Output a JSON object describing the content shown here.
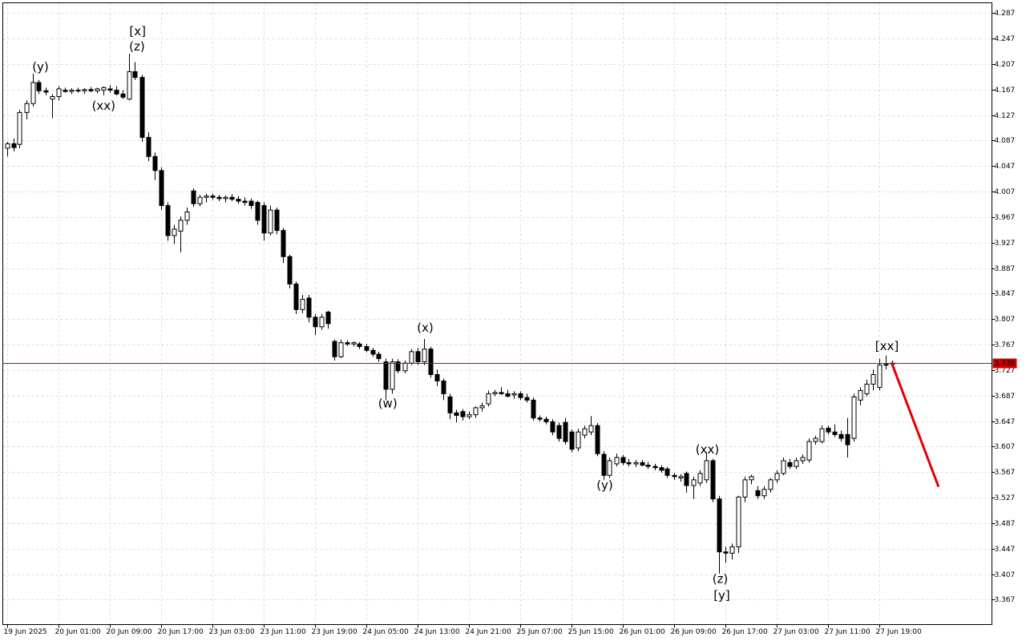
{
  "chart_data": {
    "type": "candlestick",
    "xlim": [
      -0.625,
      153.625
    ],
    "ylim": [
      3.328,
      4.303
    ],
    "grid": true,
    "up_color": "#ffffff",
    "down_color": "#000000",
    "yticks": [
      4.287,
      4.247,
      4.207,
      4.167,
      4.127,
      4.087,
      4.047,
      4.007,
      3.967,
      3.927,
      3.887,
      3.847,
      3.807,
      3.767,
      3.727,
      3.687,
      3.647,
      3.607,
      3.567,
      3.527,
      3.487,
      3.447,
      3.407,
      3.367
    ],
    "xticks": [
      {
        "value": 0,
        "label": "19 Jun 2025"
      },
      {
        "value": 8,
        "label": "20 Jun 01:00"
      },
      {
        "value": 16,
        "label": "20 Jun 09:00"
      },
      {
        "value": 24,
        "label": "20 Jun 17:00"
      },
      {
        "value": 32,
        "label": "23 Jun 03:00"
      },
      {
        "value": 40,
        "label": "23 Jun 11:00"
      },
      {
        "value": 48,
        "label": "23 Jun 19:00"
      },
      {
        "value": 56,
        "label": "24 Jun 05:00"
      },
      {
        "value": 64,
        "label": "24 Jun 13:00"
      },
      {
        "value": 72,
        "label": "24 Jun 21:00"
      },
      {
        "value": 80,
        "label": "25 Jun 07:00"
      },
      {
        "value": 88,
        "label": "25 Jun 15:00"
      },
      {
        "value": 96,
        "label": "26 Jun 01:00"
      },
      {
        "value": 104,
        "label": "26 Jun 09:00"
      },
      {
        "value": 112,
        "label": "26 Jun 17:00"
      },
      {
        "value": 120,
        "label": "27 Jun 03:00"
      },
      {
        "value": 128,
        "label": "27 Jun 11:00"
      },
      {
        "value": 136,
        "label": "27 Jun 19:00"
      }
    ],
    "current_price": 3.738,
    "current_price_color": "#cc0000",
    "forecast": {
      "x": [
        138,
        145.3
      ],
      "y": [
        3.738,
        3.544
      ],
      "color": "#e00000"
    },
    "annotations": [
      {
        "text": "(y)",
        "x": 5.25,
        "y": 4.202,
        "color": "#1a1acc"
      },
      {
        "text": "(xx)",
        "x": 15.1,
        "y": 4.141,
        "color": "#1a1acc"
      },
      {
        "text": "[x]",
        "x": 20.4,
        "y": 4.258,
        "color": "#3fbf3f"
      },
      {
        "text": "(z)",
        "x": 20.3,
        "y": 4.234,
        "color": "#1a1acc"
      },
      {
        "text": "(x)",
        "x": 65.25,
        "y": 3.793,
        "color": "#1a1acc"
      },
      {
        "text": "(w)",
        "x": 59.4,
        "y": 3.674,
        "color": "#1a1acc"
      },
      {
        "text": "(y)",
        "x": 93.25,
        "y": 3.546,
        "color": "#1a1acc"
      },
      {
        "text": "(xx)",
        "x": 109.25,
        "y": 3.602,
        "color": "#1a1acc"
      },
      {
        "text": "(z)",
        "x": 111.25,
        "y": 3.399,
        "color": "#1a1acc"
      },
      {
        "text": "[y]",
        "x": 111.5,
        "y": 3.373,
        "color": "#3fbf3f"
      },
      {
        "text": "[xx]",
        "x": 137.25,
        "y": 3.764,
        "color": "#3fbf3f"
      }
    ],
    "ohlc": [
      [
        4.075,
        4.085,
        4.062,
        4.082
      ],
      [
        4.082,
        4.09,
        4.07,
        4.076
      ],
      [
        4.081,
        4.135,
        4.075,
        4.131
      ],
      [
        4.131,
        4.15,
        4.12,
        4.145
      ],
      [
        4.145,
        4.192,
        4.14,
        4.178
      ],
      [
        4.178,
        4.182,
        4.16,
        4.165
      ],
      [
        4.165,
        4.17,
        4.158,
        4.163
      ],
      [
        4.152,
        4.16,
        4.122,
        4.156
      ],
      [
        4.156,
        4.172,
        4.15,
        4.168
      ],
      [
        4.166,
        4.17,
        4.162,
        4.164
      ],
      [
        4.164,
        4.169,
        4.16,
        4.166
      ],
      [
        4.166,
        4.17,
        4.162,
        4.165
      ],
      [
        4.165,
        4.169,
        4.16,
        4.167
      ],
      [
        4.167,
        4.171,
        4.163,
        4.165
      ],
      [
        4.165,
        4.17,
        4.161,
        4.168
      ],
      [
        4.166,
        4.172,
        4.158,
        4.17
      ],
      [
        4.168,
        4.174,
        4.162,
        4.166
      ],
      [
        4.166,
        4.172,
        4.158,
        4.16
      ],
      [
        4.16,
        4.166,
        4.152,
        4.155
      ],
      [
        4.152,
        4.223,
        4.15,
        4.195
      ],
      [
        4.195,
        4.21,
        4.182,
        4.186
      ],
      [
        4.186,
        4.19,
        4.085,
        4.092
      ],
      [
        4.092,
        4.1,
        4.055,
        4.062
      ],
      [
        4.062,
        4.068,
        4.025,
        4.04
      ],
      [
        4.04,
        4.045,
        3.978,
        3.985
      ],
      [
        3.985,
        3.99,
        3.93,
        3.938
      ],
      [
        3.938,
        3.955,
        3.925,
        3.948
      ],
      [
        3.945,
        3.968,
        3.912,
        3.962
      ],
      [
        3.962,
        3.982,
        3.955,
        3.975
      ],
      [
        4.008,
        4.012,
        3.983,
        3.988
      ],
      [
        3.988,
        4.002,
        3.984,
        3.998
      ],
      [
        3.998,
        4.004,
        3.99,
        4.0
      ],
      [
        4.0,
        4.004,
        3.994,
        3.998
      ],
      [
        3.998,
        4.002,
        3.992,
        3.996
      ],
      [
        3.996,
        4.001,
        3.99,
        3.998
      ],
      [
        3.998,
        4.003,
        3.992,
        3.995
      ],
      [
        3.995,
        4.0,
        3.988,
        3.992
      ],
      [
        3.992,
        3.998,
        3.985,
        3.99
      ],
      [
        3.992,
        3.996,
        3.98,
        3.985
      ],
      [
        3.99,
        3.993,
        3.955,
        3.962
      ],
      [
        3.985,
        3.99,
        3.93,
        3.942
      ],
      [
        3.942,
        3.985,
        3.938,
        3.978
      ],
      [
        3.978,
        3.982,
        3.94,
        3.946
      ],
      [
        3.946,
        3.95,
        3.895,
        3.905
      ],
      [
        3.905,
        3.908,
        3.855,
        3.862
      ],
      [
        3.862,
        3.866,
        3.815,
        3.822
      ],
      [
        3.822,
        3.845,
        3.816,
        3.838
      ],
      [
        3.84,
        3.845,
        3.802,
        3.81
      ],
      [
        3.81,
        3.815,
        3.782,
        3.795
      ],
      [
        3.795,
        3.815,
        3.79,
        3.81
      ],
      [
        3.818,
        3.82,
        3.792,
        3.8
      ],
      [
        3.772,
        3.775,
        3.742,
        3.748
      ],
      [
        3.748,
        3.775,
        3.746,
        3.77
      ],
      [
        3.77,
        3.774,
        3.765,
        3.768
      ],
      [
        3.768,
        3.772,
        3.764,
        3.77
      ],
      [
        3.768,
        3.771,
        3.76,
        3.764
      ],
      [
        3.764,
        3.768,
        3.755,
        3.758
      ],
      [
        3.758,
        3.762,
        3.748,
        3.752
      ],
      [
        3.752,
        3.756,
        3.74,
        3.745
      ],
      [
        3.74,
        3.745,
        3.68,
        3.697
      ],
      [
        3.697,
        3.745,
        3.69,
        3.74
      ],
      [
        3.74,
        3.744,
        3.722,
        3.726
      ],
      [
        3.726,
        3.742,
        3.722,
        3.738
      ],
      [
        3.738,
        3.76,
        3.735,
        3.756
      ],
      [
        3.756,
        3.762,
        3.735,
        3.74
      ],
      [
        3.74,
        3.776,
        3.735,
        3.76
      ],
      [
        3.76,
        3.764,
        3.715,
        3.72
      ],
      [
        3.72,
        3.728,
        3.702,
        3.71
      ],
      [
        3.71,
        3.714,
        3.68,
        3.69
      ],
      [
        3.685,
        3.69,
        3.65,
        3.66
      ],
      [
        3.66,
        3.665,
        3.645,
        3.656
      ],
      [
        3.662,
        3.666,
        3.648,
        3.654
      ],
      [
        3.654,
        3.662,
        3.65,
        3.657
      ],
      [
        3.657,
        3.67,
        3.652,
        3.668
      ],
      [
        3.668,
        3.676,
        3.662,
        3.671
      ],
      [
        3.674,
        3.695,
        3.67,
        3.69
      ],
      [
        3.69,
        3.696,
        3.686,
        3.692
      ],
      [
        3.692,
        3.7,
        3.688,
        3.69
      ],
      [
        3.69,
        3.696,
        3.684,
        3.686
      ],
      [
        3.688,
        3.694,
        3.682,
        3.69
      ],
      [
        3.69,
        3.694,
        3.68,
        3.684
      ],
      [
        3.684,
        3.69,
        3.676,
        3.68
      ],
      [
        3.68,
        3.684,
        3.648,
        3.652
      ],
      [
        3.652,
        3.656,
        3.646,
        3.65
      ],
      [
        3.65,
        3.654,
        3.642,
        3.646
      ],
      [
        3.646,
        3.65,
        3.625,
        3.63
      ],
      [
        3.64,
        3.645,
        3.615,
        3.62
      ],
      [
        3.645,
        3.652,
        3.61,
        3.615
      ],
      [
        3.63,
        3.634,
        3.598,
        3.603
      ],
      [
        3.605,
        3.635,
        3.6,
        3.63
      ],
      [
        3.625,
        3.64,
        3.62,
        3.635
      ],
      [
        3.63,
        3.655,
        3.625,
        3.64
      ],
      [
        3.64,
        3.644,
        3.592,
        3.596
      ],
      [
        3.595,
        3.6,
        3.555,
        3.562
      ],
      [
        3.562,
        3.59,
        3.558,
        3.585
      ],
      [
        3.58,
        3.596,
        3.576,
        3.59
      ],
      [
        3.59,
        3.594,
        3.578,
        3.582
      ],
      [
        3.582,
        3.588,
        3.576,
        3.58
      ],
      [
        3.58,
        3.586,
        3.575,
        3.582
      ],
      [
        3.582,
        3.586,
        3.576,
        3.578
      ],
      [
        3.578,
        3.583,
        3.572,
        3.576
      ],
      [
        3.576,
        3.58,
        3.57,
        3.574
      ],
      [
        3.574,
        3.578,
        3.566,
        3.57
      ],
      [
        3.572,
        3.575,
        3.558,
        3.562
      ],
      [
        3.562,
        3.566,
        3.555,
        3.56
      ],
      [
        3.558,
        3.564,
        3.552,
        3.56
      ],
      [
        3.565,
        3.568,
        3.535,
        3.546
      ],
      [
        3.546,
        3.56,
        3.525,
        3.555
      ],
      [
        3.55,
        3.57,
        3.545,
        3.565
      ],
      [
        3.555,
        3.598,
        3.55,
        3.585
      ],
      [
        3.585,
        3.588,
        3.52,
        3.525
      ],
      [
        3.525,
        3.53,
        3.408,
        3.442
      ],
      [
        3.442,
        3.45,
        3.425,
        3.44
      ],
      [
        3.44,
        3.455,
        3.43,
        3.45
      ],
      [
        3.45,
        3.53,
        3.44,
        3.528
      ],
      [
        3.528,
        3.56,
        3.52,
        3.555
      ],
      [
        3.555,
        3.563,
        3.548,
        3.56
      ],
      [
        3.538,
        3.545,
        3.525,
        3.53
      ],
      [
        3.53,
        3.545,
        3.525,
        3.54
      ],
      [
        3.54,
        3.558,
        3.535,
        3.555
      ],
      [
        3.555,
        3.57,
        3.55,
        3.565
      ],
      [
        3.565,
        3.59,
        3.562,
        3.585
      ],
      [
        3.582,
        3.588,
        3.572,
        3.576
      ],
      [
        3.576,
        3.59,
        3.572,
        3.585
      ],
      [
        3.585,
        3.595,
        3.58,
        3.59
      ],
      [
        3.586,
        3.62,
        3.582,
        3.615
      ],
      [
        3.615,
        3.624,
        3.61,
        3.62
      ],
      [
        3.615,
        3.64,
        3.612,
        3.635
      ],
      [
        3.636,
        3.64,
        3.626,
        3.63
      ],
      [
        3.63,
        3.642,
        3.622,
        3.626
      ],
      [
        3.626,
        3.632,
        3.615,
        3.62
      ],
      [
        3.626,
        3.652,
        3.59,
        3.61
      ],
      [
        3.62,
        3.69,
        3.615,
        3.685
      ],
      [
        3.68,
        3.7,
        3.672,
        3.695
      ],
      [
        3.69,
        3.712,
        3.686,
        3.705
      ],
      [
        3.705,
        3.728,
        3.695,
        3.72
      ],
      [
        3.7,
        3.745,
        3.695,
        3.735
      ],
      [
        3.735,
        3.75,
        3.728,
        3.736
      ],
      [
        3.738,
        3.742,
        3.732,
        3.738
      ]
    ]
  }
}
